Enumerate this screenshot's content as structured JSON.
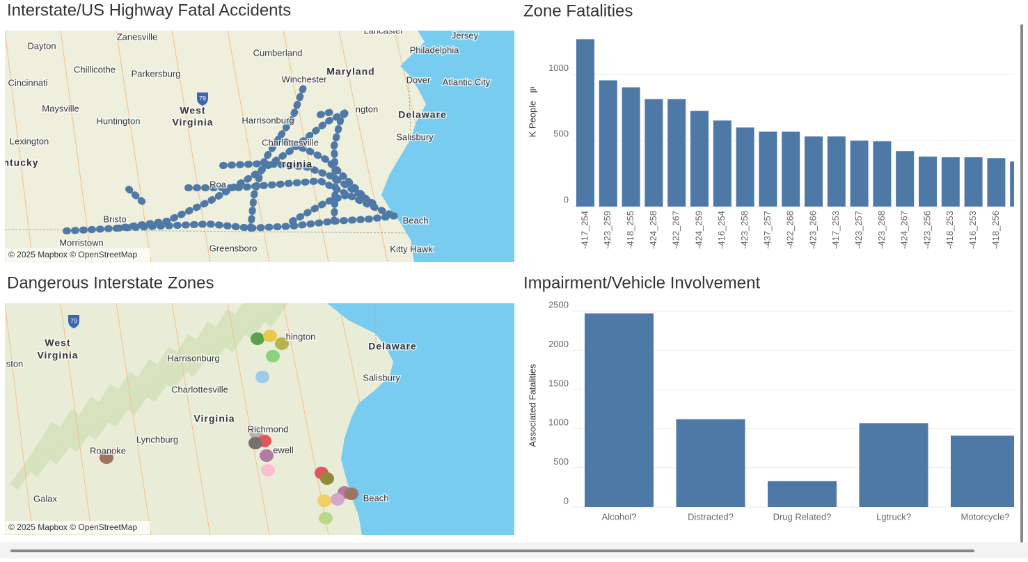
{
  "maps": [
    {
      "title": "Interstate/US Highway Fatal Accidents",
      "attribution": "© 2025 Mapbox © OpenStreetMap",
      "shield": "79",
      "places": [
        "Zanesville",
        "Lancaster",
        "Jersey",
        "Dayton",
        "Cumberland",
        "Philadelphia",
        "Chillicothe",
        "Parkersburg",
        "Maryland",
        "Cincinnati",
        "Winchester",
        "Dover",
        "Atlantic City",
        "West",
        "Virginia",
        "Maysville",
        "Huntington",
        "Harrisonburg",
        "ngton",
        "Delaware",
        "Lexington",
        "Charlottesville",
        "Salisbury",
        "ntucky",
        "rginia",
        "Roa",
        "Bristo",
        "Beach",
        "Morristown",
        "Greensboro",
        "Kitty Hawk"
      ]
    },
    {
      "title": "Dangerous Interstate Zones",
      "attribution": "© 2025 Mapbox © OpenStreetMap",
      "shield": "79",
      "places": [
        "West",
        "Virginia",
        "ston",
        "Harrisonburg",
        "hington",
        "Delaware",
        "Salisbury",
        "Charlottesville",
        "Virginia",
        "Richmond",
        "Lynchburg",
        "ewell",
        "Roanoke",
        "Galax",
        "Beach"
      ]
    }
  ],
  "chart_data": [
    {
      "type": "bar",
      "title": "Zone Fatalities",
      "y_label": "K People",
      "categories": [
        "-417_254",
        "-423_259",
        "-418_255",
        "-424_258",
        "-422_267",
        "-424_259",
        "-416_254",
        "-423_258",
        "-437_257",
        "-422_268",
        "-423_266",
        "-417_253",
        "-423_257",
        "-423_268",
        "-424_267",
        "-423_256",
        "-418_253",
        "-416_253",
        "-418_256",
        null
      ],
      "values": [
        1270,
        958,
        905,
        816,
        816,
        726,
        653,
        600,
        568,
        568,
        532,
        532,
        500,
        495,
        421,
        379,
        374,
        374,
        368,
        342
      ],
      "color": "#4e79a7",
      "ylim": [
        0,
        1330
      ],
      "yticks": [
        0,
        500,
        1000
      ],
      "grid": true
    },
    {
      "type": "bar",
      "title": "Impairment/Vehicle Involvement",
      "y_label": "Associated Fatalities",
      "categories": [
        "Alcohol?",
        "Distracted?",
        "Drug Related?",
        "Lgtruck?",
        "Motorcycle?"
      ],
      "values": [
        2470,
        1120,
        330,
        1070,
        910
      ],
      "color": "#4e79a7",
      "ylim": [
        0,
        2590
      ],
      "yticks": [
        0,
        500,
        1000,
        1500,
        2000,
        2500
      ],
      "grid": true
    }
  ]
}
